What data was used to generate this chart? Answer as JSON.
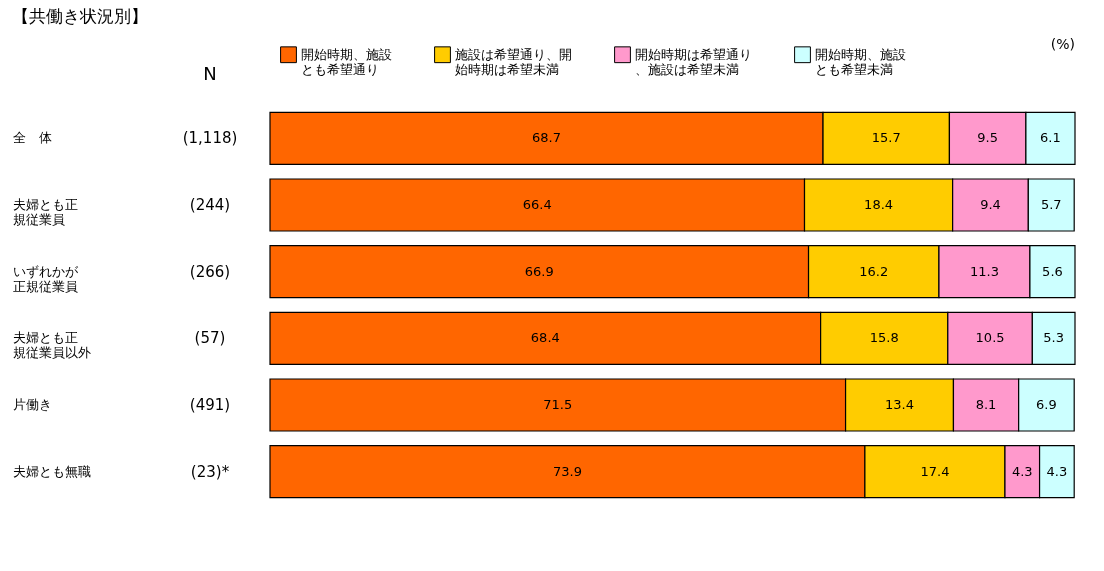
{
  "chart_data": {
    "type": "bar",
    "orientation": "horizontal",
    "stacked": true,
    "data_labels": true,
    "grid": false,
    "legend": "top",
    "title": "【共働き状況別】",
    "categories": [
      "全　体",
      "夫婦とも正規従業員",
      "いずれかが正規従業員",
      "夫婦とも正規従業員以外",
      "片働き",
      "夫婦とも無職"
    ],
    "series": [
      {
        "name": "開始時期、施設とも希望通り",
        "color": "#ff6600",
        "values": [
          68.7,
          66.4,
          66.9,
          68.4,
          71.5,
          73.9
        ]
      },
      {
        "name": "施設は希望通り、開始時期は希望未満",
        "color": "#ffcc00",
        "values": [
          15.7,
          18.4,
          16.2,
          15.8,
          13.4,
          17.4
        ]
      },
      {
        "name": "開始時期は希望通り、施設は希望未満",
        "color": "#ff99cc",
        "values": [
          9.5,
          9.4,
          11.3,
          10.5,
          8.1,
          4.3
        ]
      },
      {
        "name": "開始時期、施設とも希望未満",
        "color": "#ccffff",
        "values": [
          6.1,
          5.7,
          5.6,
          5.3,
          6.9,
          4.3
        ]
      }
    ],
    "annotations": [
      "(%)",
      "N",
      "(1,118)",
      "(244)",
      "(266)",
      "(57)",
      "(491)",
      "(23)*"
    ]
  }
}
